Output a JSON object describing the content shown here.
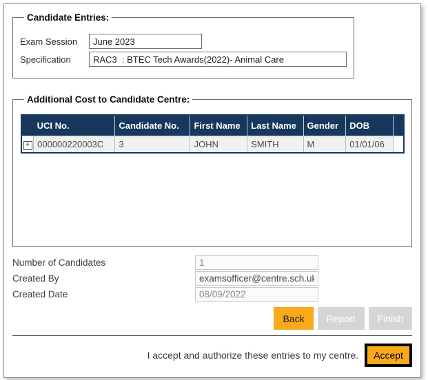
{
  "candidate_entries": {
    "legend": "Candidate Entries:",
    "exam_session": {
      "label": "Exam Session",
      "value": "June 2023"
    },
    "specification": {
      "label": "Specification",
      "value": "RAC3  : BTEC Tech Awards(2022)- Animal Care"
    }
  },
  "additional_cost": {
    "legend": "Additional Cost to Candidate Centre:",
    "table": {
      "expand_icon": "+",
      "headers": [
        "UCI No.",
        "Candidate No.",
        "First Name",
        "Last Name",
        "Gender",
        "DOB"
      ],
      "rows": [
        [
          "000000220003C",
          "3",
          "JOHN",
          "SMITH",
          "M",
          "01/01/06"
        ]
      ]
    }
  },
  "summary": {
    "fields": [
      {
        "label": "Number of Candidates",
        "value": "1"
      },
      {
        "label": "Created By",
        "value": "examsofficer@centre.sch.uk"
      },
      {
        "label": "Created Date",
        "value": "08/09/2022"
      }
    ]
  },
  "actions": {
    "back": "Back",
    "report": "Report",
    "finish": "Finish"
  },
  "accept": {
    "statement": "I accept and authorize these entries to my centre.",
    "button": "Accept"
  },
  "colors": {
    "amber": "#F9A91C",
    "header_navy": "#17375D",
    "row_background": "#F1F1F1",
    "disabled_button": "#D5D5D5"
  }
}
